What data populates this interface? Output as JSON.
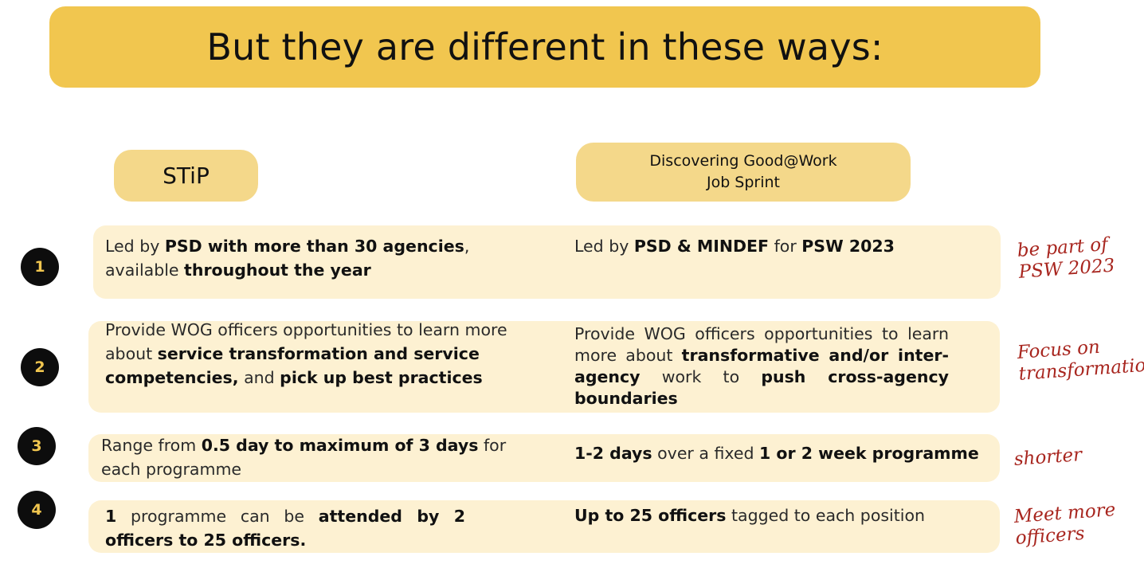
{
  "title": "But they are different in these ways:",
  "columns": {
    "stip": "STiP",
    "dgw_line1": "Discovering Good@Work",
    "dgw_line2": "Job Sprint"
  },
  "rows": [
    {
      "number": "1",
      "left": [
        {
          "t": "Led by ",
          "b": false
        },
        {
          "t": "PSD with more than 30 agencies",
          "b": true
        },
        {
          "t": ", available ",
          "b": false
        },
        {
          "t": "throughout the year",
          "b": true
        }
      ],
      "right": [
        {
          "t": "Led by ",
          "b": false
        },
        {
          "t": "PSD & MINDEF",
          "b": true
        },
        {
          "t": " for ",
          "b": false
        },
        {
          "t": "PSW 2023",
          "b": true
        }
      ],
      "note_line1": "be part of",
      "note_line2": "PSW 2023"
    },
    {
      "number": "2",
      "left": [
        {
          "t": "Provide WOG officers opportunities to learn more about ",
          "b": false
        },
        {
          "t": "service transformation and service competencies,",
          "b": true
        },
        {
          "t": " and ",
          "b": false
        },
        {
          "t": "pick up best practices",
          "b": true
        }
      ],
      "right": [
        {
          "t": "Provide WOG officers opportunities to learn more about ",
          "b": false
        },
        {
          "t": "transformative and/or inter-agency",
          "b": true
        },
        {
          "t": " work to ",
          "b": false
        },
        {
          "t": "push cross-agency boundaries",
          "b": true
        }
      ],
      "note_line1": "Focus on",
      "note_line2": "transformation"
    },
    {
      "number": "3",
      "left": [
        {
          "t": "Range from ",
          "b": false
        },
        {
          "t": "0.5 day to maximum of 3 days",
          "b": true
        },
        {
          "t": " for each programme",
          "b": false
        }
      ],
      "right": [
        {
          "t": "1-2 days",
          "b": true
        },
        {
          "t": " over a fixed ",
          "b": false
        },
        {
          "t": "1 or 2 week programme",
          "b": true
        }
      ],
      "note_line1": "shorter",
      "note_line2": ""
    },
    {
      "number": "4",
      "left": [
        {
          "t": "1",
          "b": true
        },
        {
          "t": " programme can be ",
          "b": false
        },
        {
          "t": "attended by 2 officers to 25 officers.",
          "b": true
        }
      ],
      "right": [
        {
          "t": "Up to 25 officers",
          "b": true
        },
        {
          "t": " tagged to each position",
          "b": false
        }
      ],
      "note_line1": "Meet more",
      "note_line2": "officers"
    }
  ]
}
